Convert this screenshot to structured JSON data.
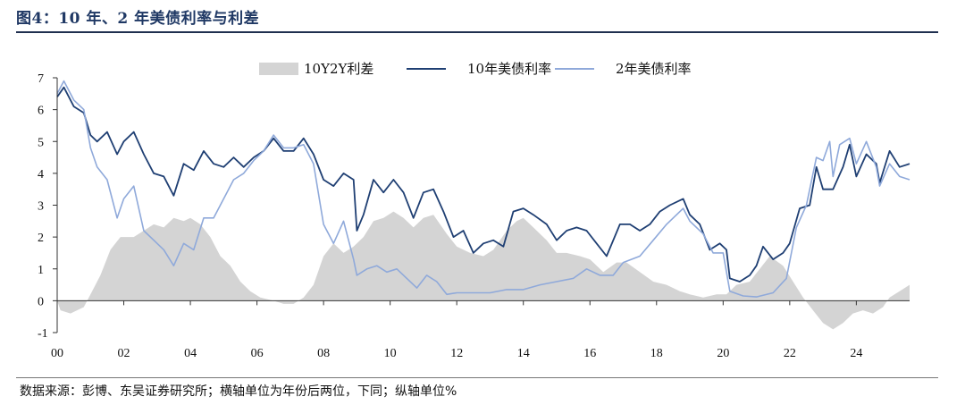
{
  "header": {
    "title": "图4：10 年、2 年美债利率与利差"
  },
  "footer": {
    "source": "数据来源：彭博、东吴证券研究所；横轴单位为年份后两位，下同；纵轴单位%"
  },
  "colors": {
    "spread": "#d4d4d4",
    "y10": "#1f3f73",
    "y2": "#8fa9da"
  },
  "chart_data": {
    "type": "line",
    "title": "",
    "xlabel": "",
    "ylabel": "",
    "xlim": [
      2000,
      2025.6
    ],
    "ylim": [
      -1,
      7
    ],
    "x_ticks": [
      2000,
      2002,
      2004,
      2006,
      2008,
      2010,
      2012,
      2014,
      2016,
      2018,
      2020,
      2022,
      2024
    ],
    "x_tick_labels": [
      "00",
      "02",
      "04",
      "06",
      "08",
      "10",
      "12",
      "14",
      "16",
      "18",
      "20",
      "22",
      "24"
    ],
    "y_ticks": [
      -1,
      0,
      1,
      2,
      3,
      4,
      5,
      6,
      7
    ],
    "y_tick_labels": [
      "-1",
      "0",
      "1",
      "2",
      "3",
      "4",
      "5",
      "6",
      "7"
    ],
    "legend_position": "top",
    "grid": false,
    "series": [
      {
        "name": "10Y2Y利差",
        "kind": "area",
        "points": [
          [
            2000.0,
            0.0
          ],
          [
            2000.1,
            -0.3
          ],
          [
            2000.4,
            -0.4
          ],
          [
            2000.8,
            -0.2
          ],
          [
            2001.0,
            0.2
          ],
          [
            2001.3,
            0.8
          ],
          [
            2001.6,
            1.6
          ],
          [
            2001.9,
            2.0
          ],
          [
            2002.3,
            2.0
          ],
          [
            2002.6,
            2.2
          ],
          [
            2002.9,
            2.4
          ],
          [
            2003.2,
            2.3
          ],
          [
            2003.5,
            2.6
          ],
          [
            2003.8,
            2.5
          ],
          [
            2004.0,
            2.6
          ],
          [
            2004.3,
            2.4
          ],
          [
            2004.6,
            2.0
          ],
          [
            2004.9,
            1.4
          ],
          [
            2005.2,
            1.1
          ],
          [
            2005.5,
            0.6
          ],
          [
            2005.8,
            0.3
          ],
          [
            2006.1,
            0.1
          ],
          [
            2006.5,
            0.0
          ],
          [
            2006.8,
            -0.1
          ],
          [
            2007.1,
            -0.1
          ],
          [
            2007.4,
            0.1
          ],
          [
            2007.7,
            0.5
          ],
          [
            2008.0,
            1.4
          ],
          [
            2008.3,
            1.8
          ],
          [
            2008.6,
            1.5
          ],
          [
            2008.9,
            1.7
          ],
          [
            2009.2,
            2.0
          ],
          [
            2009.5,
            2.5
          ],
          [
            2009.8,
            2.6
          ],
          [
            2010.1,
            2.8
          ],
          [
            2010.4,
            2.6
          ],
          [
            2010.7,
            2.3
          ],
          [
            2011.0,
            2.6
          ],
          [
            2011.3,
            2.7
          ],
          [
            2011.7,
            2.1
          ],
          [
            2012.0,
            1.7
          ],
          [
            2012.4,
            1.5
          ],
          [
            2012.8,
            1.4
          ],
          [
            2013.1,
            1.6
          ],
          [
            2013.5,
            2.2
          ],
          [
            2013.8,
            2.5
          ],
          [
            2014.0,
            2.6
          ],
          [
            2014.3,
            2.3
          ],
          [
            2014.7,
            1.9
          ],
          [
            2015.0,
            1.5
          ],
          [
            2015.3,
            1.5
          ],
          [
            2015.7,
            1.4
          ],
          [
            2016.0,
            1.3
          ],
          [
            2016.4,
            0.9
          ],
          [
            2016.8,
            1.2
          ],
          [
            2017.1,
            1.2
          ],
          [
            2017.5,
            0.9
          ],
          [
            2017.9,
            0.6
          ],
          [
            2018.3,
            0.5
          ],
          [
            2018.7,
            0.3
          ],
          [
            2019.0,
            0.2
          ],
          [
            2019.4,
            0.1
          ],
          [
            2019.8,
            0.2
          ],
          [
            2020.1,
            0.2
          ],
          [
            2020.4,
            0.5
          ],
          [
            2020.8,
            0.6
          ],
          [
            2021.1,
            1.0
          ],
          [
            2021.4,
            1.4
          ],
          [
            2021.8,
            1.1
          ],
          [
            2022.1,
            0.6
          ],
          [
            2022.4,
            0.1
          ],
          [
            2022.7,
            -0.3
          ],
          [
            2023.0,
            -0.7
          ],
          [
            2023.3,
            -0.9
          ],
          [
            2023.6,
            -0.7
          ],
          [
            2023.9,
            -0.4
          ],
          [
            2024.2,
            -0.3
          ],
          [
            2024.5,
            -0.4
          ],
          [
            2024.8,
            -0.2
          ],
          [
            2025.0,
            0.1
          ],
          [
            2025.3,
            0.3
          ],
          [
            2025.6,
            0.5
          ]
        ]
      },
      {
        "name": "10年美债利率",
        "kind": "line",
        "points": [
          [
            2000.0,
            6.4
          ],
          [
            2000.2,
            6.7
          ],
          [
            2000.5,
            6.1
          ],
          [
            2000.8,
            5.9
          ],
          [
            2001.0,
            5.2
          ],
          [
            2001.2,
            5.0
          ],
          [
            2001.5,
            5.3
          ],
          [
            2001.8,
            4.6
          ],
          [
            2002.0,
            5.0
          ],
          [
            2002.3,
            5.3
          ],
          [
            2002.6,
            4.6
          ],
          [
            2002.9,
            4.0
          ],
          [
            2003.2,
            3.9
          ],
          [
            2003.5,
            3.3
          ],
          [
            2003.8,
            4.3
          ],
          [
            2004.1,
            4.1
          ],
          [
            2004.4,
            4.7
          ],
          [
            2004.7,
            4.3
          ],
          [
            2005.0,
            4.2
          ],
          [
            2005.3,
            4.5
          ],
          [
            2005.6,
            4.2
          ],
          [
            2005.9,
            4.5
          ],
          [
            2006.2,
            4.7
          ],
          [
            2006.5,
            5.1
          ],
          [
            2006.8,
            4.7
          ],
          [
            2007.1,
            4.7
          ],
          [
            2007.4,
            5.1
          ],
          [
            2007.7,
            4.6
          ],
          [
            2008.0,
            3.8
          ],
          [
            2008.3,
            3.6
          ],
          [
            2008.6,
            4.0
          ],
          [
            2008.9,
            3.8
          ],
          [
            2009.0,
            2.2
          ],
          [
            2009.2,
            2.7
          ],
          [
            2009.5,
            3.8
          ],
          [
            2009.8,
            3.4
          ],
          [
            2010.1,
            3.8
          ],
          [
            2010.4,
            3.4
          ],
          [
            2010.7,
            2.6
          ],
          [
            2011.0,
            3.4
          ],
          [
            2011.3,
            3.5
          ],
          [
            2011.6,
            2.8
          ],
          [
            2011.9,
            2.0
          ],
          [
            2012.2,
            2.2
          ],
          [
            2012.5,
            1.5
          ],
          [
            2012.8,
            1.8
          ],
          [
            2013.1,
            1.9
          ],
          [
            2013.4,
            1.7
          ],
          [
            2013.7,
            2.8
          ],
          [
            2014.0,
            2.9
          ],
          [
            2014.3,
            2.7
          ],
          [
            2014.7,
            2.4
          ],
          [
            2015.0,
            1.9
          ],
          [
            2015.3,
            2.2
          ],
          [
            2015.6,
            2.3
          ],
          [
            2015.9,
            2.2
          ],
          [
            2016.2,
            1.8
          ],
          [
            2016.5,
            1.4
          ],
          [
            2016.9,
            2.4
          ],
          [
            2017.2,
            2.4
          ],
          [
            2017.5,
            2.2
          ],
          [
            2017.8,
            2.4
          ],
          [
            2018.1,
            2.8
          ],
          [
            2018.4,
            3.0
          ],
          [
            2018.8,
            3.2
          ],
          [
            2019.0,
            2.7
          ],
          [
            2019.3,
            2.4
          ],
          [
            2019.6,
            1.6
          ],
          [
            2019.9,
            1.8
          ],
          [
            2020.1,
            1.6
          ],
          [
            2020.2,
            0.7
          ],
          [
            2020.5,
            0.6
          ],
          [
            2020.8,
            0.8
          ],
          [
            2021.0,
            1.1
          ],
          [
            2021.2,
            1.7
          ],
          [
            2021.5,
            1.3
          ],
          [
            2021.8,
            1.5
          ],
          [
            2022.0,
            1.8
          ],
          [
            2022.3,
            2.9
          ],
          [
            2022.6,
            3.0
          ],
          [
            2022.8,
            4.2
          ],
          [
            2023.0,
            3.5
          ],
          [
            2023.3,
            3.5
          ],
          [
            2023.6,
            4.2
          ],
          [
            2023.8,
            4.9
          ],
          [
            2024.0,
            3.9
          ],
          [
            2024.3,
            4.6
          ],
          [
            2024.6,
            4.3
          ],
          [
            2024.7,
            3.7
          ],
          [
            2025.0,
            4.7
          ],
          [
            2025.3,
            4.2
          ],
          [
            2025.6,
            4.3
          ]
        ]
      },
      {
        "name": "2年美债利率",
        "kind": "line",
        "points": [
          [
            2000.0,
            6.5
          ],
          [
            2000.2,
            6.9
          ],
          [
            2000.5,
            6.3
          ],
          [
            2000.8,
            6.0
          ],
          [
            2001.0,
            4.8
          ],
          [
            2001.2,
            4.2
          ],
          [
            2001.5,
            3.8
          ],
          [
            2001.8,
            2.6
          ],
          [
            2002.0,
            3.2
          ],
          [
            2002.3,
            3.6
          ],
          [
            2002.6,
            2.2
          ],
          [
            2002.9,
            1.9
          ],
          [
            2003.2,
            1.6
          ],
          [
            2003.5,
            1.1
          ],
          [
            2003.8,
            1.8
          ],
          [
            2004.1,
            1.6
          ],
          [
            2004.4,
            2.6
          ],
          [
            2004.7,
            2.6
          ],
          [
            2005.0,
            3.2
          ],
          [
            2005.3,
            3.8
          ],
          [
            2005.6,
            4.0
          ],
          [
            2005.9,
            4.4
          ],
          [
            2006.2,
            4.7
          ],
          [
            2006.5,
            5.2
          ],
          [
            2006.8,
            4.8
          ],
          [
            2007.1,
            4.8
          ],
          [
            2007.4,
            4.9
          ],
          [
            2007.7,
            4.3
          ],
          [
            2008.0,
            2.4
          ],
          [
            2008.3,
            1.8
          ],
          [
            2008.6,
            2.5
          ],
          [
            2008.9,
            1.3
          ],
          [
            2009.0,
            0.8
          ],
          [
            2009.3,
            1.0
          ],
          [
            2009.6,
            1.1
          ],
          [
            2009.9,
            0.9
          ],
          [
            2010.2,
            1.0
          ],
          [
            2010.5,
            0.7
          ],
          [
            2010.8,
            0.4
          ],
          [
            2011.1,
            0.8
          ],
          [
            2011.4,
            0.6
          ],
          [
            2011.7,
            0.2
          ],
          [
            2012.0,
            0.25
          ],
          [
            2012.5,
            0.25
          ],
          [
            2013.0,
            0.25
          ],
          [
            2013.5,
            0.35
          ],
          [
            2014.0,
            0.35
          ],
          [
            2014.5,
            0.5
          ],
          [
            2015.0,
            0.6
          ],
          [
            2015.5,
            0.7
          ],
          [
            2015.9,
            1.0
          ],
          [
            2016.3,
            0.8
          ],
          [
            2016.7,
            0.8
          ],
          [
            2017.0,
            1.2
          ],
          [
            2017.5,
            1.4
          ],
          [
            2017.9,
            1.9
          ],
          [
            2018.3,
            2.4
          ],
          [
            2018.8,
            2.9
          ],
          [
            2019.0,
            2.5
          ],
          [
            2019.4,
            2.1
          ],
          [
            2019.7,
            1.5
          ],
          [
            2020.0,
            1.5
          ],
          [
            2020.2,
            0.3
          ],
          [
            2020.6,
            0.15
          ],
          [
            2021.0,
            0.12
          ],
          [
            2021.5,
            0.25
          ],
          [
            2021.9,
            0.7
          ],
          [
            2022.2,
            2.3
          ],
          [
            2022.5,
            3.0
          ],
          [
            2022.8,
            4.5
          ],
          [
            2023.0,
            4.4
          ],
          [
            2023.2,
            5.0
          ],
          [
            2023.3,
            3.9
          ],
          [
            2023.5,
            4.9
          ],
          [
            2023.8,
            5.1
          ],
          [
            2024.0,
            4.3
          ],
          [
            2024.3,
            5.0
          ],
          [
            2024.6,
            4.2
          ],
          [
            2024.7,
            3.6
          ],
          [
            2025.0,
            4.3
          ],
          [
            2025.3,
            3.9
          ],
          [
            2025.6,
            3.8
          ]
        ]
      }
    ]
  }
}
